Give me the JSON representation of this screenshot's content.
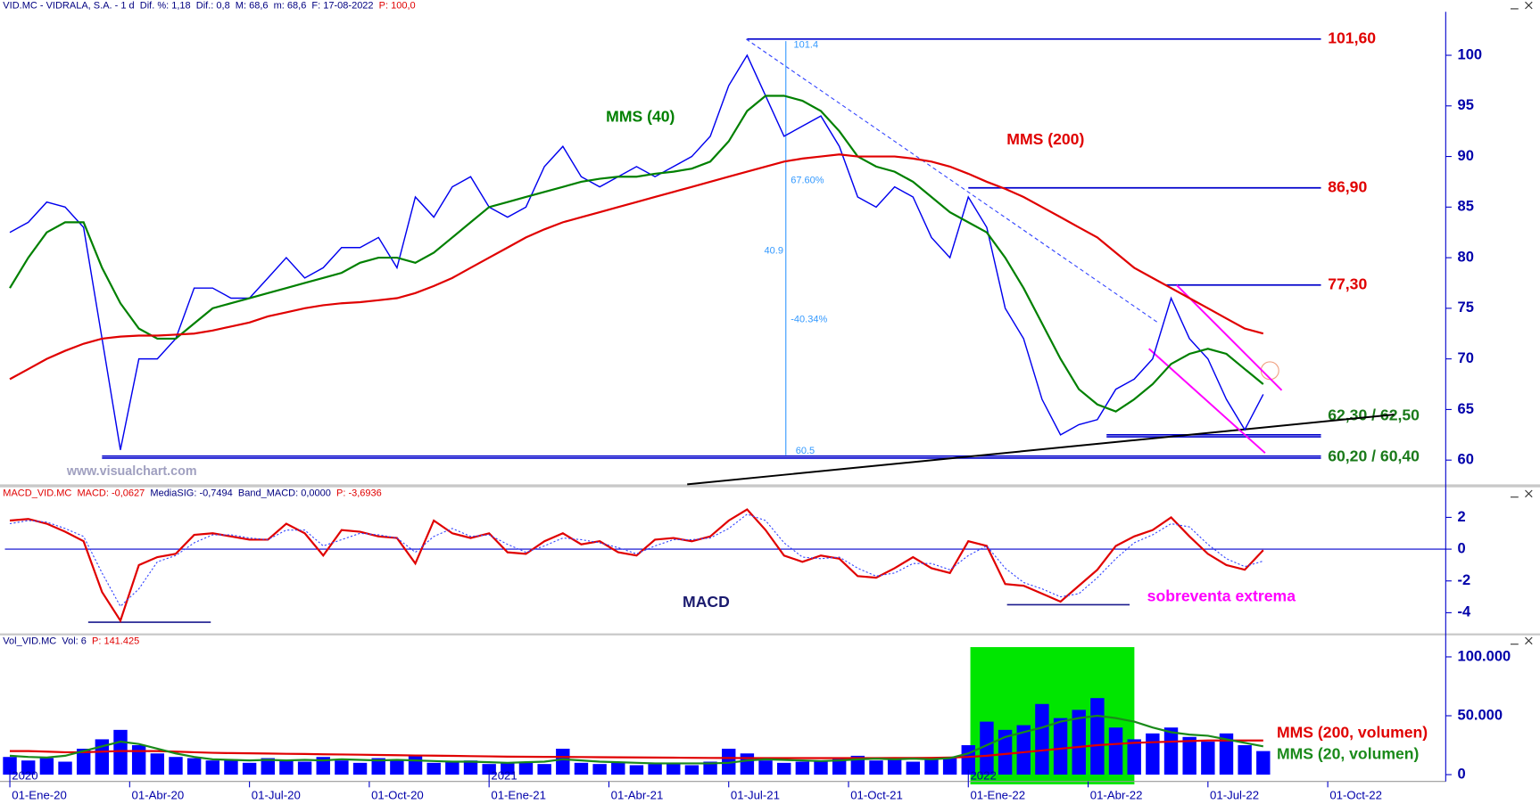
{
  "chart_data": [
    {
      "type": "line",
      "header": [
        {
          "text": "VID.MC - VIDRALA, S.A. - 1 d  Dif. %: 1,18  Dif.: 0,8  M: 68,6  m: 68,6  F: 17-08-2022  ",
          "color": "#000080"
        },
        {
          "text": "P: 100,0",
          "color": "#e00000"
        }
      ],
      "watermark": "www.visualchart.com",
      "x": [
        0,
        2,
        4,
        6,
        8,
        10,
        12,
        14,
        16,
        18,
        20,
        22,
        24,
        26,
        28,
        30,
        32,
        34,
        36,
        38,
        40,
        42,
        44,
        46,
        48,
        50,
        52,
        54,
        56,
        58,
        60,
        62,
        64,
        66,
        68,
        70,
        72,
        74,
        76,
        78,
        80,
        82,
        84,
        86,
        88,
        90,
        92,
        94,
        96,
        98,
        100,
        102,
        104,
        106,
        108,
        110,
        112,
        114,
        116,
        118,
        120,
        122,
        124,
        126,
        128,
        130,
        132,
        134,
        136
      ],
      "xlim": [
        -1.07,
        155.8
      ],
      "ylim": [
        57.7,
        104.3
      ],
      "yticks": [
        60,
        65,
        70,
        75,
        80,
        85,
        90,
        95,
        100
      ],
      "series": [
        {
          "color": "#0000ee",
          "values": [
            82.5,
            83.5,
            85.5,
            85,
            83,
            72,
            61,
            70,
            70,
            72,
            77,
            77,
            76,
            76,
            78,
            80,
            78,
            79,
            81,
            81,
            82,
            79,
            86,
            84,
            87,
            88,
            85,
            84,
            85,
            89,
            91,
            88,
            87,
            88,
            89,
            88,
            89,
            90,
            92,
            97,
            100,
            96,
            92,
            93,
            94,
            91,
            86,
            85,
            87,
            86,
            82,
            80,
            86,
            83,
            75,
            72,
            66,
            62.5,
            63.5,
            64,
            67,
            68,
            70,
            76,
            72,
            70,
            66,
            63,
            66.5
          ]
        },
        {
          "name": "MMS (40)",
          "color": "#008000",
          "values": [
            77,
            80,
            82.5,
            83.5,
            83.5,
            79,
            75.5,
            73,
            72,
            72,
            73.5,
            75,
            75.5,
            76,
            76.5,
            77,
            77.5,
            78,
            78.5,
            79.5,
            80,
            80,
            79.5,
            80.5,
            82,
            83.5,
            85,
            85.5,
            86,
            86.5,
            87,
            87.5,
            87.8,
            88,
            88,
            88.3,
            88.5,
            88.8,
            89.5,
            91.5,
            94.5,
            96,
            96,
            95.5,
            94.5,
            92.5,
            90,
            89,
            88.5,
            87.5,
            86,
            84.5,
            83.5,
            82.5,
            80,
            77,
            73.5,
            70,
            67,
            65.5,
            64.8,
            66,
            67.5,
            69.5,
            70.5,
            71,
            70.5,
            69,
            67.5
          ]
        },
        {
          "name": "MMS (200)",
          "color": "#e00000",
          "values": [
            68,
            69,
            70,
            70.8,
            71.5,
            72,
            72.2,
            72.3,
            72.3,
            72.4,
            72.5,
            72.8,
            73.2,
            73.6,
            74.2,
            74.6,
            75,
            75.3,
            75.5,
            75.6,
            75.8,
            76,
            76.5,
            77.2,
            78,
            79,
            80,
            81,
            82,
            82.8,
            83.5,
            84,
            84.5,
            85,
            85.5,
            86,
            86.5,
            87,
            87.5,
            88,
            88.5,
            89,
            89.5,
            89.8,
            90,
            90.2,
            90,
            90,
            90,
            89.8,
            89.5,
            89,
            88.3,
            87.5,
            86.8,
            86,
            85,
            84,
            83,
            82,
            80.5,
            79,
            78,
            77,
            76,
            75,
            74,
            73,
            72.5
          ]
        }
      ],
      "levels": [
        {
          "values": [
            101.6
          ],
          "label": "101,60",
          "from": 80,
          "color": "#e00000"
        },
        {
          "values": [
            86.9
          ],
          "label": "86,90",
          "from": 104,
          "color": "#e00000"
        },
        {
          "values": [
            77.3
          ],
          "label": "77,30",
          "from": 125.5,
          "color": "#e00000"
        },
        {
          "values": [
            62.3,
            62.5
          ],
          "label": "62,30 / 62,50",
          "from": 119,
          "color": "#1a7a1a"
        },
        {
          "values": [
            60.2,
            60.4
          ],
          "label": "60,20 / 60,40",
          "from": 10,
          "color": "#1a7a1a"
        }
      ],
      "lines": [
        {
          "x": [
            73.5,
            150.2
          ],
          "y": [
            57.6,
            64.5
          ],
          "color": "#000000",
          "dash": false
        },
        {
          "x": [
            126.6,
            138
          ],
          "y": [
            77.3,
            66.9
          ],
          "color": "#ff00ff",
          "dash": false
        },
        {
          "x": [
            123.6,
            136.2
          ],
          "y": [
            71,
            60.7
          ],
          "color": "#ff00ff",
          "dash": false
        },
        {
          "x": [
            79.9,
            124.7
          ],
          "y": [
            101.6,
            73.5
          ],
          "color": "#3344ff",
          "dash": true
        }
      ],
      "fib": {
        "x": 84.2,
        "top": 101.4,
        "bottom": 60.5,
        "ratio": "67.60%",
        "range": 40.9,
        "change": "-40.34%"
      }
    },
    {
      "type": "line",
      "header": [
        {
          "text": "MACD_VID.MC  MACD: -0,0627  ",
          "color": "#e00000"
        },
        {
          "text": "MediaSIG: -0,7494  Band_MACD: 0,0000  ",
          "color": "#000080"
        },
        {
          "text": "P: -3,6936",
          "color": "#e00000"
        }
      ],
      "ylim": [
        -5.24,
        3.09
      ],
      "yticks": [
        -4,
        -2,
        0,
        2
      ],
      "zero_line": true,
      "series": [
        {
          "name": "MACD",
          "color": "#e00000",
          "values": [
            1.8,
            1.9,
            1.6,
            1.1,
            0.5,
            -2.7,
            -4.5,
            -1,
            -0.5,
            -0.3,
            0.9,
            1,
            0.8,
            0.6,
            0.6,
            1.6,
            1,
            -0.4,
            1.2,
            1.1,
            0.8,
            0.7,
            -0.9,
            1.8,
            1,
            0.7,
            1,
            -0.2,
            -0.3,
            0.5,
            1,
            0.3,
            0.5,
            -0.2,
            -0.4,
            0.6,
            0.7,
            0.5,
            0.8,
            1.8,
            2.5,
            1.2,
            -0.4,
            -0.8,
            -0.4,
            -0.6,
            -1.7,
            -1.8,
            -1.2,
            -0.5,
            -1.2,
            -1.5,
            0.5,
            0.2,
            -2.2,
            -2.3,
            -2.8,
            -3.3,
            -2.3,
            -1.3,
            0.2,
            0.8,
            1.2,
            2,
            0.8,
            -0.3,
            -1,
            -1.3,
            -0.06
          ]
        },
        {
          "color": "#3344ff",
          "dash": true,
          "values": [
            1.6,
            1.8,
            1.7,
            1.3,
            0.8,
            -1.5,
            -3.6,
            -2.5,
            -0.8,
            -0.4,
            0.4,
            0.9,
            0.9,
            0.7,
            0.6,
            1.2,
            1.2,
            0.2,
            0.6,
            1,
            0.9,
            0.7,
            -0.2,
            0.8,
            1.3,
            0.8,
            0.9,
            0.3,
            -0.2,
            0.2,
            0.7,
            0.6,
            0.4,
            0.1,
            -0.3,
            0.2,
            0.6,
            0.6,
            0.7,
            1.3,
            2.2,
            1.8,
            0.4,
            -0.5,
            -0.6,
            -0.5,
            -1.2,
            -1.7,
            -1.5,
            -0.9,
            -0.9,
            -1.3,
            -0.4,
            0.2,
            -1.2,
            -2.1,
            -2.5,
            -3,
            -2.8,
            -1.8,
            -0.6,
            0.4,
            0.9,
            1.6,
            1.4,
            0.3,
            -0.6,
            -1.1,
            -0.75
          ]
        }
      ],
      "annotation_lines": [
        {
          "value": -4.6,
          "from": 8.5,
          "to": 21.8
        },
        {
          "value": -3.5,
          "from": 108.2,
          "to": 121.5
        }
      ],
      "note": "sobreventa extrema"
    },
    {
      "type": "bar",
      "header": [
        {
          "text": "Vol_VID.MC  Vol: 6  ",
          "color": "#000080"
        },
        {
          "text": "P: 141.425",
          "color": "#e00000"
        }
      ],
      "ylim": [
        -5800,
        108300
      ],
      "yticks": [
        0,
        {
          "value": 50000,
          "label": "50.000"
        },
        {
          "value": 100000,
          "label": "100.000"
        }
      ],
      "color": "#0000ff",
      "values": [
        15000,
        12000,
        14000,
        11000,
        22000,
        30000,
        38000,
        25000,
        18000,
        15000,
        14000,
        12000,
        13000,
        10000,
        14000,
        12000,
        11000,
        15000,
        12000,
        10000,
        14000,
        12000,
        16000,
        10000,
        11000,
        12000,
        9000,
        10000,
        11000,
        9000,
        22000,
        10000,
        9000,
        11000,
        8000,
        9000,
        10000,
        8000,
        11000,
        22000,
        18000,
        12000,
        10000,
        11000,
        12000,
        14000,
        16000,
        12000,
        14000,
        11000,
        13000,
        15000,
        25000,
        45000,
        38000,
        42000,
        60000,
        48000,
        55000,
        65000,
        40000,
        30000,
        35000,
        40000,
        32000,
        28000,
        35000,
        25000,
        20000
      ],
      "series": [
        {
          "name": "MMS (200, volumen)",
          "color": "#e00000",
          "values": [
            20000,
            20000,
            19500,
            19000,
            19000,
            19500,
            20000,
            20000,
            20000,
            19500,
            19000,
            18500,
            18300,
            18100,
            17900,
            17700,
            17500,
            17300,
            17100,
            16900,
            16700,
            16500,
            16300,
            16100,
            15900,
            15700,
            15500,
            15300,
            15200,
            15100,
            15000,
            14900,
            14800,
            14700,
            14600,
            14500,
            14400,
            14300,
            14200,
            14100,
            14000,
            14000,
            14000,
            14000,
            14000,
            14000,
            14000,
            14000,
            14100,
            14200,
            14300,
            14500,
            15000,
            16000,
            17500,
            19000,
            20500,
            22000,
            23500,
            25000,
            26000,
            27000,
            27500,
            28000,
            28500,
            29000,
            29000,
            29000,
            29000
          ]
        },
        {
          "name": "MMS (20, volumen)",
          "color": "#1a8a1a",
          "values": [
            16000,
            15000,
            14500,
            16000,
            20000,
            24000,
            28000,
            26000,
            22000,
            18000,
            15000,
            13000,
            12500,
            12000,
            12500,
            12000,
            12500,
            12000,
            13000,
            12500,
            12000,
            12500,
            12000,
            11500,
            11000,
            11000,
            10500,
            10000,
            10500,
            11000,
            13000,
            12000,
            11000,
            10500,
            10000,
            9500,
            9500,
            9500,
            9500,
            10000,
            12000,
            13000,
            12500,
            12000,
            11500,
            12000,
            13000,
            13500,
            13000,
            13500,
            13000,
            14000,
            18000,
            25000,
            32000,
            36000,
            40000,
            45000,
            48000,
            50000,
            48000,
            45000,
            40000,
            36000,
            34000,
            33000,
            30000,
            27000,
            24000
          ]
        }
      ],
      "xticks": [
        {
          "value": 0,
          "label": "01-Ene-20"
        },
        {
          "value": 13,
          "label": "01-Abr-20"
        },
        {
          "value": 26,
          "label": "01-Jul-20"
        },
        {
          "value": 39,
          "label": "01-Oct-20"
        },
        {
          "value": 52,
          "label": "01-Ene-21"
        },
        {
          "value": 65,
          "label": "01-Abr-21"
        },
        {
          "value": 78,
          "label": "01-Jul-21"
        },
        {
          "value": 91,
          "label": "01-Oct-21"
        },
        {
          "value": 104,
          "label": "01-Ene-22"
        },
        {
          "value": 117,
          "label": "01-Abr-22"
        },
        {
          "value": 130,
          "label": "01-Jul-22"
        },
        {
          "value": 143,
          "label": "01-Oct-22"
        }
      ],
      "year_ticks": [
        {
          "value": 0,
          "label": "2020"
        },
        {
          "value": 52,
          "label": "2021"
        },
        {
          "value": 104,
          "label": "2022"
        }
      ]
    }
  ]
}
